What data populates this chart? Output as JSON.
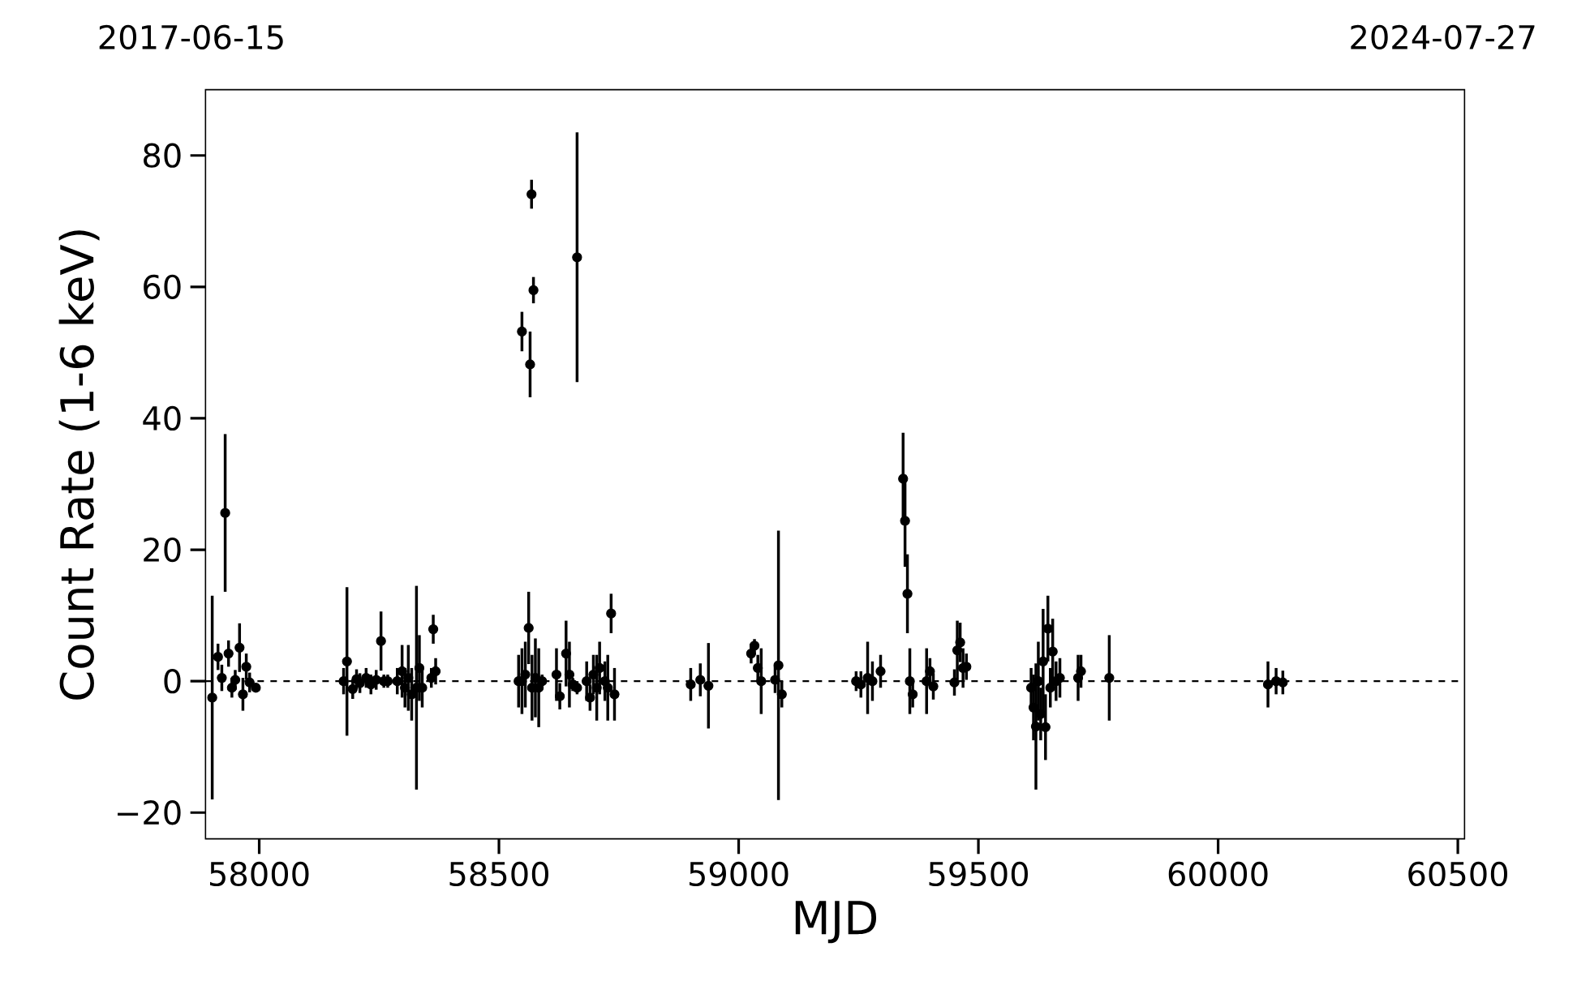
{
  "chart_data": {
    "type": "scatter",
    "xlabel": "MJD",
    "ylabel": "Count Rate (1-6 keV)",
    "annotations": [
      "2017-06-15",
      "2024-07-27"
    ],
    "xlim": [
      57888,
      60514
    ],
    "xticks": [
      58000,
      58500,
      59000,
      59500,
      60000,
      60500
    ],
    "ylim": [
      -24,
      90
    ],
    "yticks": [
      {
        "value": -20,
        "label": "−20"
      },
      0,
      20,
      40,
      60,
      80
    ],
    "grid": false,
    "marker": "circle",
    "ref_lines": [
      {
        "axis": "y",
        "value": 0,
        "color": "#000000",
        "line_style": "dashed"
      }
    ],
    "series": [
      {
        "color": "#000000",
        "x": [
          57902,
          57914,
          57922,
          57929,
          57936,
          57943,
          57950,
          57959,
          57966,
          57973,
          57980,
          57993,
          58176,
          58183,
          58195,
          58203,
          58210,
          58223,
          58233,
          58244,
          58254,
          58260,
          58268,
          58288,
          58298,
          58304,
          58311,
          58318,
          58328,
          58334,
          58340,
          58359,
          58363,
          58368,
          58541,
          58548,
          58548,
          58555,
          58562,
          58569,
          58565,
          58576,
          58568,
          58583,
          58572,
          58590,
          58620,
          58627,
          58640,
          58647,
          58654,
          58663,
          58663,
          58683,
          58690,
          58697,
          58704,
          58710,
          58721,
          58727,
          58734,
          58741,
          58900,
          58920,
          58937,
          59026,
          59033,
          59040,
          59047,
          59083,
          59090,
          59076,
          59245,
          59255,
          59269,
          59279,
          59296,
          59343,
          59347,
          59352,
          59357,
          59363,
          59392,
          59399,
          59406,
          59450,
          59456,
          59462,
          59468,
          59475,
          59610,
          59615,
          59620,
          59625,
          59630,
          59635,
          59640,
          59645,
          59650,
          59655,
          59662,
          59670,
          59708,
          59714,
          59773,
          60104,
          60121,
          60135
        ],
        "values": [
          -2.5,
          3.7,
          0.5,
          25.6,
          4.2,
          -1,
          0.2,
          5.1,
          -2,
          2.2,
          -0.2,
          -1,
          0,
          3,
          -1.2,
          0.3,
          -0.3,
          0.5,
          -0.5,
          0.2,
          6.1,
          0,
          0,
          0,
          1.5,
          -1,
          0.5,
          -2,
          -1,
          2,
          -1,
          0.5,
          7.9,
          1.5,
          0,
          53.2,
          0,
          1,
          8.1,
          -1,
          48.2,
          0.5,
          74.1,
          -1,
          59.5,
          0,
          1,
          -2.3,
          4.2,
          1,
          -0.5,
          64.5,
          -1,
          0,
          -2.5,
          1,
          -1,
          2,
          0,
          -1,
          10.3,
          -2,
          -0.5,
          0.2,
          -0.7,
          4.2,
          5.4,
          2,
          0,
          2.4,
          -2,
          0.2,
          0,
          -0.5,
          0.5,
          0,
          1.5,
          30.8,
          24.4,
          13.3,
          0,
          -2,
          0,
          1.5,
          -0.8,
          -0.2,
          4.7,
          5.9,
          2,
          2.2,
          -1,
          -4,
          -6.9,
          0,
          -5,
          3,
          -7,
          8,
          -1,
          4.5,
          0,
          0.5,
          0.5,
          1.5,
          0.5,
          -0.5,
          0,
          -0.2
        ],
        "errors": [
          15.5,
          2,
          2,
          12,
          2,
          1.5,
          1.5,
          3.7,
          2.5,
          2,
          1.5,
          0.5,
          2,
          11.3,
          1.5,
          1.5,
          1.5,
          1.5,
          1.5,
          1.5,
          4.5,
          1,
          1,
          2,
          4,
          3,
          5,
          4,
          15.5,
          5,
          3,
          1.5,
          2.2,
          2,
          4,
          3,
          5,
          5,
          5.5,
          5,
          5,
          6,
          2.2,
          6,
          2,
          1,
          4,
          2,
          5,
          5,
          1,
          19,
          1,
          3,
          2,
          3,
          5,
          4,
          3,
          5,
          3,
          4,
          2.5,
          2.5,
          6.5,
          1.5,
          1,
          2,
          5,
          20.5,
          2,
          2,
          1.5,
          2,
          5.5,
          3,
          2.5,
          7,
          7,
          6,
          5,
          2,
          5,
          2,
          2,
          2,
          4.5,
          3,
          3,
          2,
          3,
          5,
          9.6,
          6,
          4,
          8,
          5,
          5,
          3,
          5,
          3,
          3,
          3.5,
          2.5,
          6.5,
          3.5,
          2,
          1.8
        ]
      }
    ]
  }
}
